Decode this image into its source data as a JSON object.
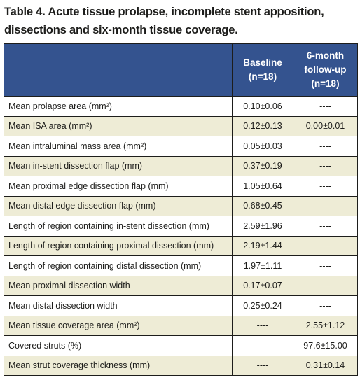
{
  "table": {
    "title_line1": "Table 4. Acute tissue prolapse, incomplete stent apposition,",
    "title_line2": "dissections and six-month tissue coverage.",
    "header": {
      "col1": "",
      "col2_line1": "Baseline",
      "col2_line2": "(n=18)",
      "col3_line1": "6-month",
      "col3_line2": "follow-up",
      "col3_line3": "(n=18)"
    },
    "rows": [
      {
        "label": "Mean prolapse area (mm²)",
        "baseline": "0.10±0.06",
        "followup": "----"
      },
      {
        "label": "Mean ISA area (mm²)",
        "baseline": "0.12±0.13",
        "followup": "0.00±0.01"
      },
      {
        "label": "Mean intraluminal mass area (mm²)",
        "baseline": "0.05±0.03",
        "followup": "----"
      },
      {
        "label": "Mean in-stent dissection flap (mm)",
        "baseline": "0.37±0.19",
        "followup": "----"
      },
      {
        "label": "Mean proximal edge dissection flap (mm)",
        "baseline": "1.05±0.64",
        "followup": "----"
      },
      {
        "label": "Mean distal edge dissection flap (mm)",
        "baseline": "0.68±0.45",
        "followup": "----"
      },
      {
        "label": "Length of region containing in-stent dissection (mm)",
        "baseline": "2.59±1.96",
        "followup": "----"
      },
      {
        "label": "Length of region containing proximal dissection (mm)",
        "baseline": "2.19±1.44",
        "followup": "----"
      },
      {
        "label": "Length of region containing distal dissection (mm)",
        "baseline": "1.97±1.11",
        "followup": "----"
      },
      {
        "label": "Mean proximal dissection width",
        "baseline": "0.17±0.07",
        "followup": "----"
      },
      {
        "label": "Mean distal dissection width",
        "baseline": "0.25±0.24",
        "followup": "----"
      },
      {
        "label": "Mean tissue coverage area (mm²)",
        "baseline": "----",
        "followup": "2.55±1.12"
      },
      {
        "label": "Covered struts (%)",
        "baseline": "----",
        "followup": "97.6±15.00"
      },
      {
        "label": "Mean strut coverage thickness (mm)",
        "baseline": "----",
        "followup": "0.31±0.14"
      }
    ]
  },
  "colors": {
    "header_bg": "#34538f",
    "shaded_row_bg": "#eeecd6",
    "plain_row_bg": "#ffffff",
    "text": "#1d1d1b"
  }
}
